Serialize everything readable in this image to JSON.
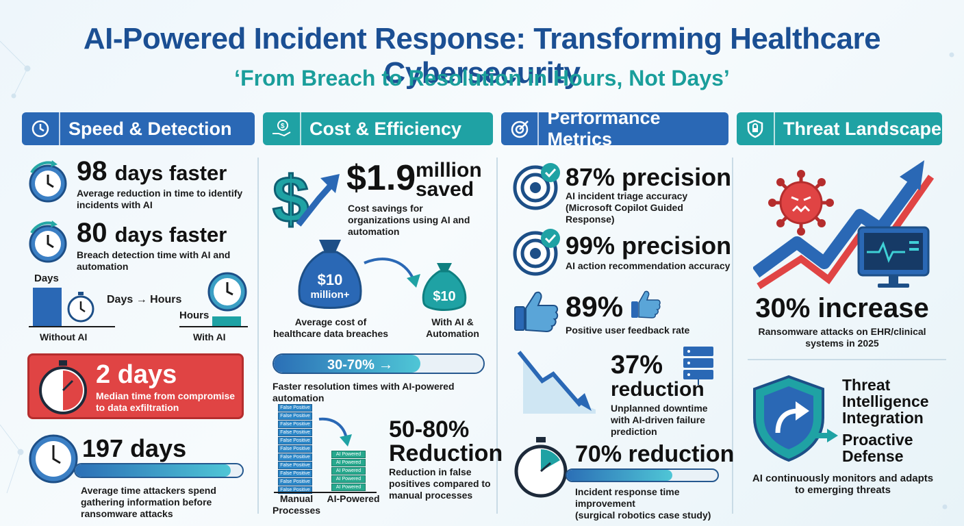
{
  "title": "AI-Powered Incident Response: Transforming Healthcare Cybersecurity",
  "subtitle": "‘From Breach to Resolution in Hours, Not Days’",
  "colors": {
    "navy": "#1b4f93",
    "teal": "#1a9e9b",
    "red": "#e04444",
    "blue": "#2a68b5"
  },
  "sections": {
    "speed": {
      "header": "Speed & Detection",
      "icon": "clock-icon",
      "stat1": {
        "value": "98",
        "unit": "days faster",
        "desc": "Average reduction in time to identify incidents with AI"
      },
      "stat2": {
        "value": "80",
        "unit": "days faster",
        "desc": "Breach detection time with AI and automation"
      },
      "compare": {
        "days_label": "Days",
        "arrow_label": "Days → Hours",
        "hours_label": "Hours",
        "without": "Without AI",
        "with": "With AI"
      },
      "alert": {
        "value": "2 days",
        "desc": "Median time from compromise to data exfiltration"
      },
      "stat3": {
        "value": "197 days",
        "desc": "Average time attackers spend gathering information before ransomware attacks",
        "progress": 0.93
      }
    },
    "cost": {
      "header": "Cost & Efficiency",
      "icon": "hand-coin-icon",
      "savings": {
        "value": "$1.9",
        "unit_line1": "million",
        "unit_line2": "saved",
        "desc": "Cost savings for organizations using AI and automation"
      },
      "bag_big": "$10 million+",
      "bag_big_l1": "$10",
      "bag_big_l2": "million+",
      "bag_small": "$10",
      "bag_big_desc": "Average cost of healthcare data breaches",
      "bag_small_desc": "With AI & Automation",
      "range": {
        "label": "30-70%",
        "arrow": "→",
        "desc": "Faster resolution times with AI-powered automation",
        "progress": 0.7
      },
      "fp_label": "False Positive",
      "ai_label": "AI Powered",
      "manual_label": "Manual Processes",
      "aipowered_label": "AI-Powered",
      "reduction": {
        "value": "50-80%",
        "unit": "Reduction",
        "desc": "Reduction in false positives compared to manual processes"
      }
    },
    "perf": {
      "header": "Performance Metrics",
      "icon": "speedometer-icon",
      "m1": {
        "value": "87% precision",
        "desc_l1": "AI incident triage accuracy",
        "desc_l2": "(Microsoft Copilot Guided Response)"
      },
      "m2": {
        "value": "99% precision",
        "desc": "AI action recommendation accuracy"
      },
      "m3": {
        "value": "89%",
        "desc": "Positive user feedback rate"
      },
      "m4": {
        "value": "37%",
        "unit": "reduction",
        "desc": "Unplanned downtime with AI-driven failure prediction"
      },
      "m5": {
        "value": "70% reduction",
        "desc_l1": "Incident response time improvement",
        "desc_l2": "(surgical robotics case study)",
        "progress": 0.7
      }
    },
    "threat": {
      "header": "Threat Landscape",
      "icon": "shield-lock-icon",
      "stat": {
        "value": "30% increase",
        "desc": "Ransomware attacks on EHR/clinical systems in 2025"
      },
      "ti_l1": "Threat",
      "ti_l2": "Intelligence",
      "ti_l3": "Integration",
      "pd_l1": "Proactive",
      "pd_l2": "Defense",
      "desc": "AI continuously monitors and adapts to emerging threats"
    }
  }
}
